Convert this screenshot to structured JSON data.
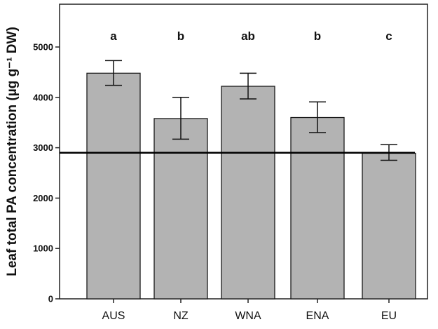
{
  "chart_data": {
    "type": "bar",
    "categories": [
      "AUS",
      "NZ",
      "WNA",
      "ENA",
      "EU"
    ],
    "values": [
      4480,
      3580,
      4220,
      3600,
      2890
    ],
    "error_bars": [
      {
        "low": 4240,
        "high": 4730
      },
      {
        "low": 3170,
        "high": 4000
      },
      {
        "low": 3970,
        "high": 4480
      },
      {
        "low": 3300,
        "high": 3910
      },
      {
        "low": 2750,
        "high": 3060
      }
    ],
    "significance_letters": [
      "a",
      "b",
      "ab",
      "b",
      "c"
    ],
    "reference_line": 2900,
    "ylabel": "Leaf total PA concentration (µg g⁻¹ DW)",
    "xlabel": "",
    "yticks": [
      "0",
      "1000",
      "2000",
      "3000",
      "4000",
      "5000"
    ],
    "ylim": [
      0,
      5900
    ],
    "colors": {
      "bar": "#b3b3b3",
      "stroke": "#1a1a1a"
    }
  }
}
